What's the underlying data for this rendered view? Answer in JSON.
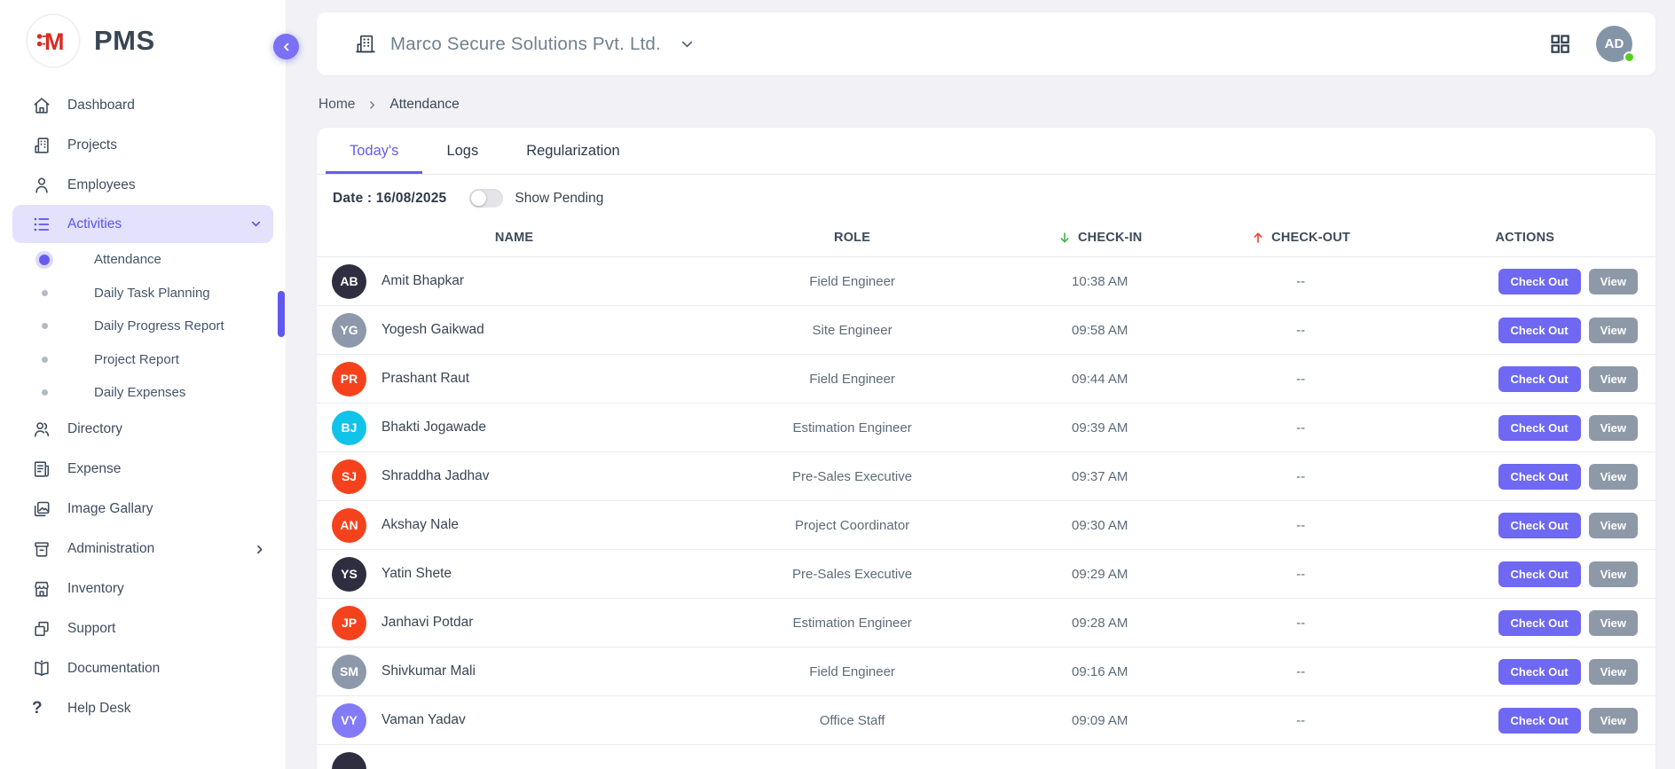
{
  "app": {
    "logo_text": "PMS",
    "logo_mark": "M",
    "logo_color": "#d92b21"
  },
  "colors": {
    "accent": "#655cf0",
    "checkout_button": "#6e68f3",
    "view_button": "#8e99a8",
    "checkin_arrow": "#43b649",
    "checkout_arrow": "#ef4136",
    "online_status": "#54cf1d"
  },
  "sidebar": {
    "items": [
      {
        "icon": "home-icon",
        "label": "Dashboard"
      },
      {
        "icon": "projects-icon",
        "label": "Projects"
      },
      {
        "icon": "employees-icon",
        "label": "Employees"
      },
      {
        "icon": "activities-icon",
        "label": "Activities",
        "active": true,
        "chevron": "down",
        "children": [
          {
            "label": "Attendance",
            "active": true
          },
          {
            "label": "Daily Task Planning"
          },
          {
            "label": "Daily Progress Report"
          },
          {
            "label": "Project Report"
          },
          {
            "label": "Daily Expenses"
          }
        ]
      },
      {
        "icon": "directory-icon",
        "label": "Directory"
      },
      {
        "icon": "expense-icon",
        "label": "Expense"
      },
      {
        "icon": "gallery-icon",
        "label": "Image Gallary"
      },
      {
        "icon": "administration-icon",
        "label": "Administration",
        "chevron": "right"
      },
      {
        "icon": "inventory-icon",
        "label": "Inventory"
      },
      {
        "icon": "support-icon",
        "label": "Support"
      },
      {
        "icon": "documentation-icon",
        "label": "Documentation"
      },
      {
        "icon": "help-icon",
        "label": "Help Desk"
      }
    ]
  },
  "topbar": {
    "company_name": "Marco Secure Solutions Pvt. Ltd.",
    "avatar_initials": "AD",
    "avatar_status": "online"
  },
  "breadcrumb": {
    "home": "Home",
    "current": "Attendance"
  },
  "tabs": [
    {
      "label": "Today's",
      "active": true
    },
    {
      "label": "Logs",
      "active": false
    },
    {
      "label": "Regularization",
      "active": false
    }
  ],
  "filter_bar": {
    "date_label": "Date : 16/08/2025",
    "toggle_label": "Show Pending",
    "toggle_on": false
  },
  "table": {
    "columns": [
      {
        "label": "NAME"
      },
      {
        "label": "ROLE"
      },
      {
        "label": "CHECK-IN",
        "sort": "down"
      },
      {
        "label": "CHECK-OUT",
        "sort": "up"
      },
      {
        "label": "ACTIONS"
      }
    ],
    "actions": {
      "check_out": "Check Out",
      "view": "View"
    },
    "rows": [
      {
        "initials": "AB",
        "avatar_color": "#2f2e41",
        "name": "Amit Bhapkar",
        "role": "Field Engineer",
        "check_in": "10:38 AM",
        "check_out": "--"
      },
      {
        "initials": "YG",
        "avatar_color": "#8d99ab",
        "name": "Yogesh Gaikwad",
        "role": "Site Engineer",
        "check_in": "09:58 AM",
        "check_out": "--"
      },
      {
        "initials": "PR",
        "avatar_color": "#f5421d",
        "name": "Prashant Raut",
        "role": "Field Engineer",
        "check_in": "09:44 AM",
        "check_out": "--"
      },
      {
        "initials": "BJ",
        "avatar_color": "#10c3e9",
        "name": "Bhakti Jogawade",
        "role": "Estimation Engineer",
        "check_in": "09:39 AM",
        "check_out": "--"
      },
      {
        "initials": "SJ",
        "avatar_color": "#f5421d",
        "name": "Shraddha Jadhav",
        "role": "Pre-Sales Executive",
        "check_in": "09:37 AM",
        "check_out": "--"
      },
      {
        "initials": "AN",
        "avatar_color": "#f5421d",
        "name": "Akshay Nale",
        "role": "Project Coordinator",
        "check_in": "09:30 AM",
        "check_out": "--"
      },
      {
        "initials": "YS",
        "avatar_color": "#2f2e41",
        "name": "Yatin Shete",
        "role": "Pre-Sales Executive",
        "check_in": "09:29 AM",
        "check_out": "--"
      },
      {
        "initials": "JP",
        "avatar_color": "#f5421d",
        "name": "Janhavi Potdar",
        "role": "Estimation Engineer",
        "check_in": "09:28 AM",
        "check_out": "--"
      },
      {
        "initials": "SM",
        "avatar_color": "#8d99ab",
        "name": "Shivkumar Mali",
        "role": "Field Engineer",
        "check_in": "09:16 AM",
        "check_out": "--"
      },
      {
        "initials": "VY",
        "avatar_color": "#837af8",
        "name": "Vaman Yadav",
        "role": "Office Staff",
        "check_in": "09:09 AM",
        "check_out": "--"
      }
    ],
    "partial_row": {
      "initials": "",
      "avatar_color": "#2f2e41",
      "name": "",
      "role": ""
    }
  }
}
